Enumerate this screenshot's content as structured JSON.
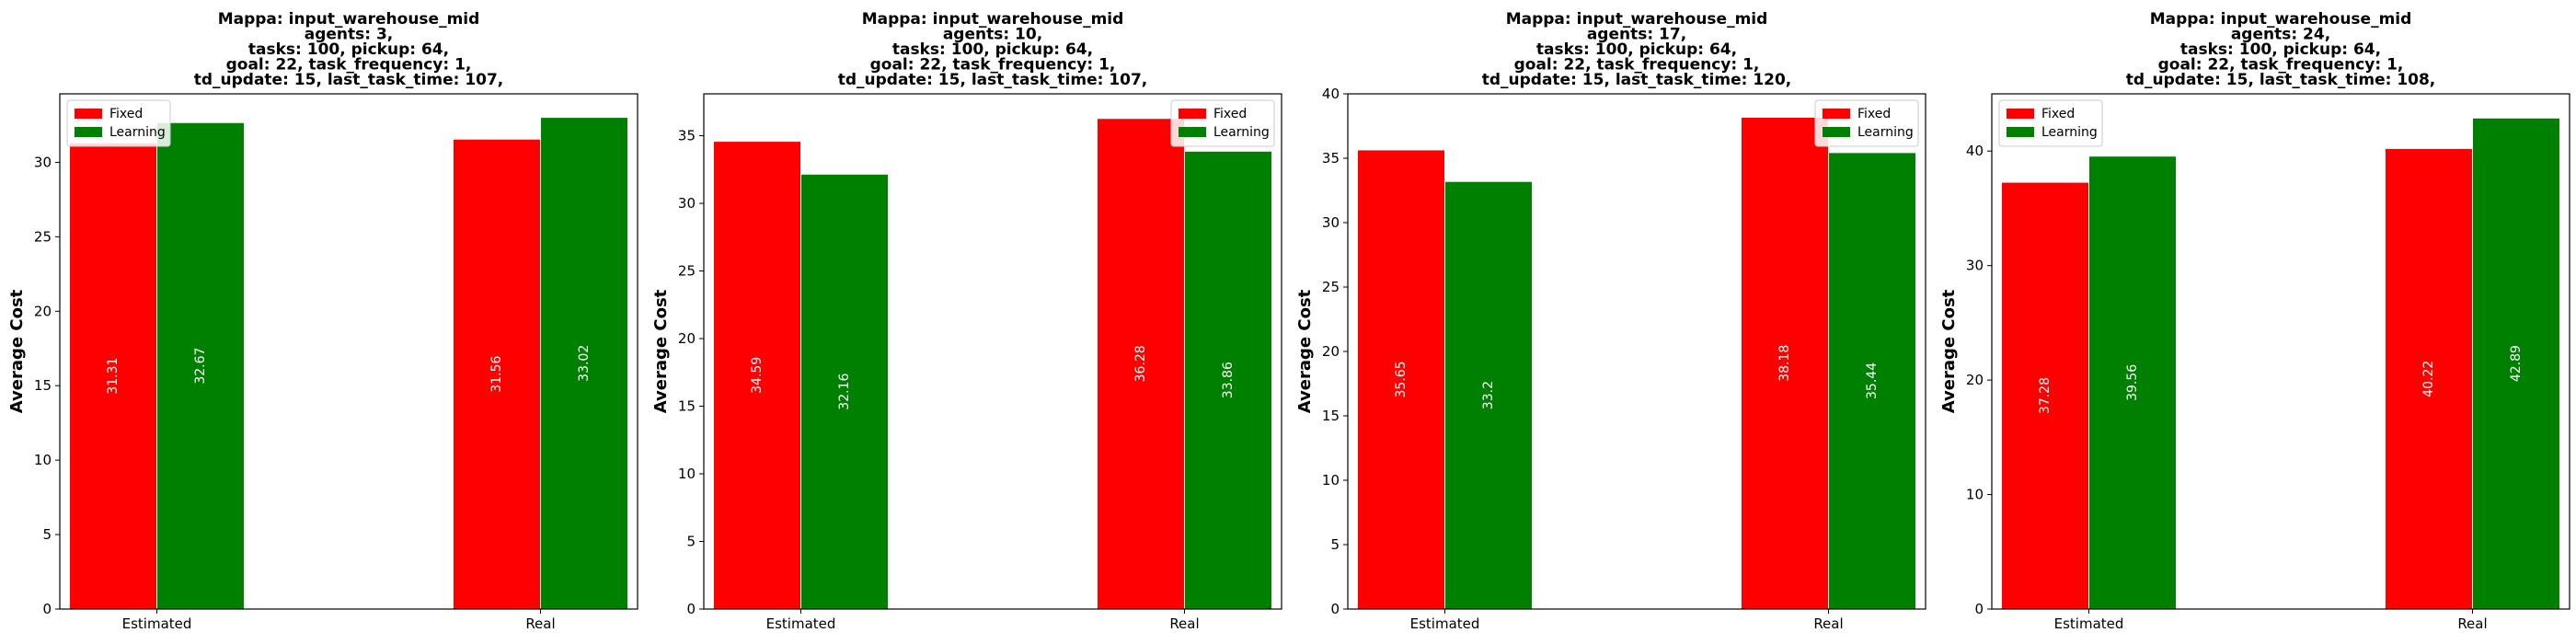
{
  "chart_data": [
    {
      "type": "bar",
      "title": [
        "Mappa: input_warehouse_mid",
        "agents: 3,",
        "tasks: 100, pickup: 64,",
        "goal: 22, task_frequency: 1,",
        "td_update: 15, last_task_time: 107,"
      ],
      "xlabel": "",
      "ylabel": "Average Cost",
      "categories": [
        "Estimated",
        "Real"
      ],
      "series": [
        {
          "name": "Fixed",
          "color": "#ff0000",
          "values": [
            31.31,
            31.56
          ],
          "labels": [
            "31.31",
            "31.56"
          ]
        },
        {
          "name": "Learning",
          "color": "#008000",
          "values": [
            32.67,
            33.02
          ],
          "labels": [
            "32.67",
            "33.02"
          ]
        }
      ],
      "ylim": [
        0,
        34.6
      ],
      "yticks": [
        0,
        5,
        10,
        15,
        20,
        25,
        30
      ],
      "legend": "top-left",
      "grid": false
    },
    {
      "type": "bar",
      "title": [
        "Mappa: input_warehouse_mid",
        "agents: 10,",
        "tasks: 100, pickup: 64,",
        "goal: 22, task_frequency: 1,",
        "td_update: 15, last_task_time: 107,"
      ],
      "xlabel": "",
      "ylabel": "Average Cost",
      "categories": [
        "Estimated",
        "Real"
      ],
      "series": [
        {
          "name": "Fixed",
          "color": "#ff0000",
          "values": [
            34.59,
            36.28
          ],
          "labels": [
            "34.59",
            "36.28"
          ]
        },
        {
          "name": "Learning",
          "color": "#008000",
          "values": [
            32.16,
            33.86
          ],
          "labels": [
            "32.16",
            "33.86"
          ]
        }
      ],
      "ylim": [
        0,
        38.1
      ],
      "yticks": [
        0,
        5,
        10,
        15,
        20,
        25,
        30,
        35
      ],
      "legend": "top-right",
      "grid": false
    },
    {
      "type": "bar",
      "title": [
        "Mappa: input_warehouse_mid",
        "agents: 17,",
        "tasks: 100, pickup: 64,",
        "goal: 22, task_frequency: 1,",
        "td_update: 15, last_task_time: 120,"
      ],
      "xlabel": "",
      "ylabel": "Average Cost",
      "categories": [
        "Estimated",
        "Real"
      ],
      "series": [
        {
          "name": "Fixed",
          "color": "#ff0000",
          "values": [
            35.65,
            38.18
          ],
          "labels": [
            "35.65",
            "38.18"
          ]
        },
        {
          "name": "Learning",
          "color": "#008000",
          "values": [
            33.2,
            35.44
          ],
          "labels": [
            "33.2",
            "35.44"
          ]
        }
      ],
      "ylim": [
        0,
        40
      ],
      "yticks": [
        0,
        5,
        10,
        15,
        20,
        25,
        30,
        35,
        40
      ],
      "legend": "top-right",
      "grid": false
    },
    {
      "type": "bar",
      "title": [
        "Mappa: input_warehouse_mid",
        "agents: 24,",
        "tasks: 100, pickup: 64,",
        "goal: 22, task_frequency: 1,",
        "td_update: 15, last_task_time: 108,"
      ],
      "xlabel": "",
      "ylabel": "Average Cost",
      "categories": [
        "Estimated",
        "Real"
      ],
      "series": [
        {
          "name": "Fixed",
          "color": "#ff0000",
          "values": [
            37.28,
            40.22
          ],
          "labels": [
            "37.28",
            "40.22"
          ]
        },
        {
          "name": "Learning",
          "color": "#008000",
          "values": [
            39.56,
            42.89
          ],
          "labels": [
            "39.56",
            "42.89"
          ]
        }
      ],
      "ylim": [
        0,
        45.0
      ],
      "yticks": [
        0,
        10,
        20,
        30,
        40
      ],
      "legend": "top-left",
      "grid": false
    }
  ]
}
